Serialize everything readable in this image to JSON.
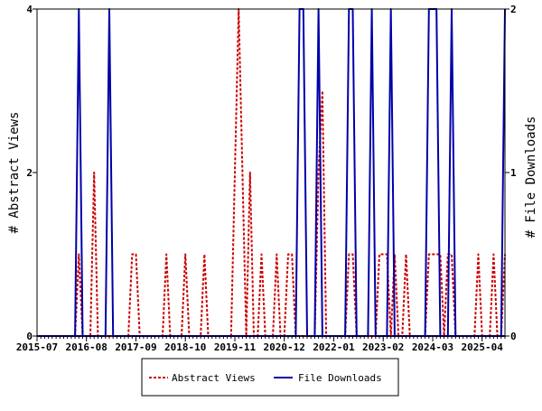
{
  "chart_data": {
    "type": "line",
    "xlabel": "",
    "ylabel": "# Abstract Views",
    "y2label": "# File Downloads",
    "x_range": [
      "2015-07",
      "2025-10"
    ],
    "ylim": [
      0,
      4
    ],
    "y2lim": [
      0,
      2
    ],
    "yticks": [
      "0",
      "2",
      "4"
    ],
    "y2ticks": [
      "0",
      "1",
      "2"
    ],
    "xtick_labels": [
      "2015-07",
      "2016-08",
      "2017-09",
      "2018-10",
      "2019-11",
      "2020-12",
      "2022-01",
      "2023-02",
      "2024-03",
      "2025-04"
    ],
    "grid": false,
    "legend_position": "bottom",
    "series": [
      {
        "name": "Abstract Views",
        "axis": "left",
        "color": "#cc0000",
        "style": "dashed",
        "points": [
          [
            "2016-05",
            0
          ],
          [
            "2016-06",
            1
          ],
          [
            "2016-07",
            0
          ],
          [
            "2016-09",
            0
          ],
          [
            "2016-10",
            2
          ],
          [
            "2016-11",
            0
          ],
          [
            "2017-07",
            0
          ],
          [
            "2017-08",
            1
          ],
          [
            "2017-09",
            1
          ],
          [
            "2017-10",
            0
          ],
          [
            "2018-04",
            0
          ],
          [
            "2018-05",
            1
          ],
          [
            "2018-06",
            0
          ],
          [
            "2018-09",
            0
          ],
          [
            "2018-10",
            1
          ],
          [
            "2018-11",
            0
          ],
          [
            "2019-02",
            0
          ],
          [
            "2019-03",
            1
          ],
          [
            "2019-04",
            0
          ],
          [
            "2019-10",
            0
          ],
          [
            "2019-11",
            2
          ],
          [
            "2019-12",
            4
          ],
          [
            "2020-01",
            2
          ],
          [
            "2020-02",
            0
          ],
          [
            "2020-03",
            2
          ],
          [
            "2020-04",
            0
          ],
          [
            "2020-05",
            0
          ],
          [
            "2020-06",
            1
          ],
          [
            "2020-07",
            0
          ],
          [
            "2020-09",
            0
          ],
          [
            "2020-10",
            1
          ],
          [
            "2020-11",
            0
          ],
          [
            "2020-12",
            0
          ],
          [
            "2021-01",
            1
          ],
          [
            "2021-02",
            1
          ],
          [
            "2021-03",
            0
          ],
          [
            "2021-08",
            0
          ],
          [
            "2021-09",
            2
          ],
          [
            "2021-10",
            3
          ],
          [
            "2021-11",
            0
          ],
          [
            "2022-04",
            0
          ],
          [
            "2022-05",
            1
          ],
          [
            "2022-06",
            1
          ],
          [
            "2022-07",
            0
          ],
          [
            "2022-12",
            0
          ],
          [
            "2023-01",
            1
          ],
          [
            "2023-02",
            1
          ],
          [
            "2023-03",
            1
          ],
          [
            "2023-04",
            0
          ],
          [
            "2023-05",
            1
          ],
          [
            "2023-06",
            0
          ],
          [
            "2023-07",
            0
          ],
          [
            "2023-08",
            1
          ],
          [
            "2023-09",
            0
          ],
          [
            "2024-01",
            0
          ],
          [
            "2024-02",
            1
          ],
          [
            "2024-03",
            1
          ],
          [
            "2024-04",
            1
          ],
          [
            "2024-05",
            1
          ],
          [
            "2024-06",
            0
          ],
          [
            "2024-07",
            1
          ],
          [
            "2024-08",
            1
          ],
          [
            "2024-09",
            0
          ],
          [
            "2025-02",
            0
          ],
          [
            "2025-03",
            1
          ],
          [
            "2025-04",
            0
          ],
          [
            "2025-06",
            0
          ],
          [
            "2025-07",
            1
          ],
          [
            "2025-08",
            0
          ],
          [
            "2025-09",
            0
          ],
          [
            "2025-10",
            1
          ]
        ]
      },
      {
        "name": "File Downloads",
        "axis": "right",
        "color": "#0000aa",
        "style": "solid",
        "points": [
          [
            "2015-07",
            0
          ],
          [
            "2016-05",
            0
          ],
          [
            "2016-06",
            2
          ],
          [
            "2016-07",
            0
          ],
          [
            "2017-01",
            0
          ],
          [
            "2017-02",
            2
          ],
          [
            "2017-03",
            0
          ],
          [
            "2020-12",
            0
          ],
          [
            "2021-03",
            0
          ],
          [
            "2021-04",
            2
          ],
          [
            "2021-05",
            2
          ],
          [
            "2021-06",
            0
          ],
          [
            "2021-08",
            0
          ],
          [
            "2021-09",
            2
          ],
          [
            "2021-10",
            0
          ],
          [
            "2022-04",
            0
          ],
          [
            "2022-05",
            2
          ],
          [
            "2022-06",
            2
          ],
          [
            "2022-07",
            0
          ],
          [
            "2022-10",
            0
          ],
          [
            "2022-11",
            2
          ],
          [
            "2022-12",
            0
          ],
          [
            "2023-03",
            0
          ],
          [
            "2023-04",
            2
          ],
          [
            "2023-05",
            0
          ],
          [
            "2024-01",
            0
          ],
          [
            "2024-02",
            2
          ],
          [
            "2024-03",
            2
          ],
          [
            "2024-04",
            2
          ],
          [
            "2024-05",
            0
          ],
          [
            "2024-07",
            0
          ],
          [
            "2024-08",
            2
          ],
          [
            "2024-09",
            0
          ],
          [
            "2025-09",
            0
          ],
          [
            "2025-10",
            2
          ]
        ]
      }
    ]
  }
}
